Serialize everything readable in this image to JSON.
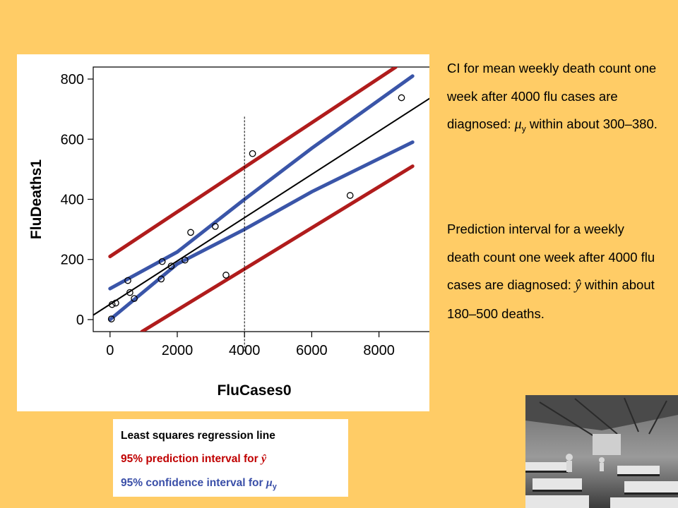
{
  "chart_data": {
    "type": "scatter",
    "xlabel": "FluCases0",
    "ylabel": "FluDeaths1",
    "xlim": [
      -500,
      9500
    ],
    "ylim": [
      -40,
      840
    ],
    "x_ticks": [
      "0",
      "2000",
      "4000",
      "6000",
      "8000"
    ],
    "x_tick_values": [
      0,
      2000,
      4000,
      6000,
      8000
    ],
    "y_ticks": [
      "0",
      "200",
      "400",
      "600",
      "800"
    ],
    "y_tick_values": [
      0,
      200,
      400,
      600,
      800
    ],
    "points": [
      {
        "x": 40,
        "y": 2
      },
      {
        "x": 60,
        "y": 50
      },
      {
        "x": 170,
        "y": 55
      },
      {
        "x": 530,
        "y": 130
      },
      {
        "x": 590,
        "y": 90
      },
      {
        "x": 720,
        "y": 70
      },
      {
        "x": 1520,
        "y": 135
      },
      {
        "x": 1550,
        "y": 193
      },
      {
        "x": 1820,
        "y": 178
      },
      {
        "x": 2230,
        "y": 198
      },
      {
        "x": 2400,
        "y": 290
      },
      {
        "x": 3130,
        "y": 310
      },
      {
        "x": 3450,
        "y": 148
      },
      {
        "x": 4240,
        "y": 552
      },
      {
        "x": 7140,
        "y": 413
      },
      {
        "x": 8670,
        "y": 738
      }
    ],
    "regression_line": {
      "x": [
        -500,
        9500
      ],
      "y": [
        15,
        735
      ],
      "color": "#000000"
    },
    "prediction_band": {
      "color": "#B01C1C",
      "upper": {
        "x": [
          0,
          8500
        ],
        "y": [
          210,
          840
        ]
      },
      "lower": {
        "x": [
          950,
          9000
        ],
        "y": [
          -40,
          510
        ]
      }
    },
    "confidence_band": {
      "color": "#3A55A8",
      "upper": {
        "x": [
          0,
          2000,
          4000,
          6000,
          9000
        ],
        "y": [
          103,
          225,
          400,
          570,
          810
        ]
      },
      "lower": {
        "x": [
          0,
          2000,
          4000,
          6000,
          9000
        ],
        "y": [
          0,
          185,
          300,
          425,
          590
        ]
      }
    },
    "reference_line": {
      "x": 4000,
      "y_from": -40,
      "y_to": 675
    }
  },
  "notes": {
    "ci_text": "CI for mean weekly death count one week after 4000 flu cases are diagnosed: ",
    "ci_symbol": "μ",
    "ci_sub": "y",
    "ci_text_end": " within about 300–380.",
    "pi_text": "Prediction interval for a weekly death count one week after 4000 flu cases are diagnosed: ",
    "pi_symbol": "ŷ",
    "pi_text_end": " within about 180–500 deaths."
  },
  "legend": {
    "ls_label": "Least squares regression line",
    "pi_label": "95% prediction interval for ",
    "pi_symbol": "ŷ",
    "ci_label": "95% confidence interval for ",
    "ci_symbol": "μ",
    "ci_sub": "y",
    "colors": {
      "ls": "#000000",
      "pi": "#C00000",
      "ci": "#3A4FA8"
    }
  },
  "photo": {
    "icon": "historical-hospital-ward-photo"
  }
}
